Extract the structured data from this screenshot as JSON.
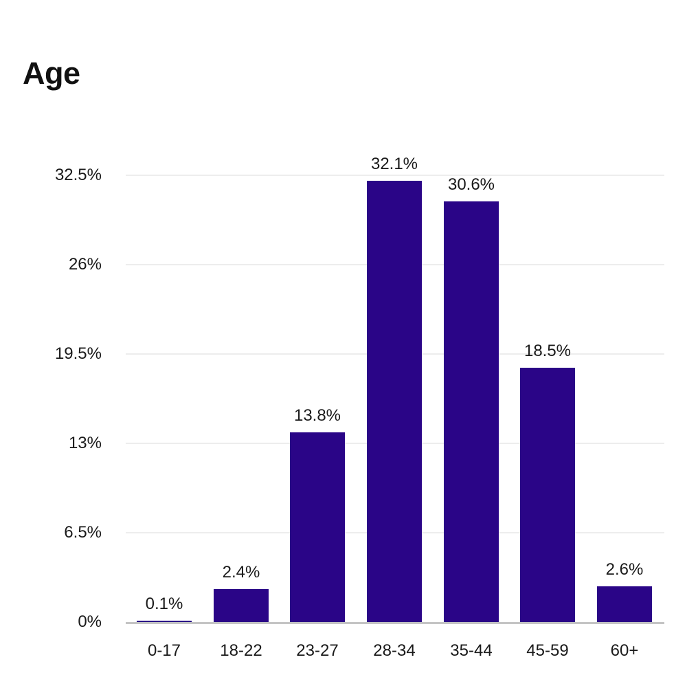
{
  "header": {
    "title": "Age"
  },
  "chart_data": {
    "type": "bar",
    "title": "Age",
    "categories": [
      "0-17",
      "18-22",
      "23-27",
      "28-34",
      "35-44",
      "45-59",
      "60+"
    ],
    "values": [
      0.1,
      2.4,
      13.8,
      32.1,
      30.6,
      18.5,
      2.6
    ],
    "value_labels": [
      "0.1%",
      "2.4%",
      "13.8%",
      "32.1%",
      "30.6%",
      "18.5%",
      "2.6%"
    ],
    "y_ticks": [
      {
        "value": 0,
        "label": "0%"
      },
      {
        "value": 6.5,
        "label": "6.5%"
      },
      {
        "value": 13,
        "label": "13%"
      },
      {
        "value": 19.5,
        "label": "19.5%"
      },
      {
        "value": 26,
        "label": "26%"
      },
      {
        "value": 32.5,
        "label": "32.5%"
      }
    ],
    "xlabel": "",
    "ylabel": "",
    "ylim": [
      0,
      32.5
    ],
    "grid": true,
    "legend_position": "none",
    "bar_color": "#2A0587",
    "grid_color": "#EDEDED",
    "axis_color": "#C4C4C4",
    "text_color": "#1A1A1A",
    "title_color": "#111111",
    "background_color": "#FFFFFF"
  }
}
